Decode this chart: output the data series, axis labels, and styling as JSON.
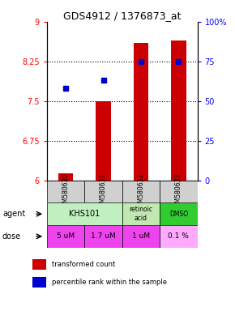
{
  "title": "GDS4912 / 1376873_at",
  "samples": [
    "GSM580630",
    "GSM580631",
    "GSM580632",
    "GSM580633"
  ],
  "bar_values": [
    6.13,
    7.5,
    8.6,
    8.65
  ],
  "percentile_values": [
    58,
    63,
    75,
    75
  ],
  "ylim_left": [
    6,
    9
  ],
  "ylim_right": [
    0,
    100
  ],
  "yticks_left": [
    6,
    6.75,
    7.5,
    8.25,
    9
  ],
  "yticks_right": [
    0,
    25,
    50,
    75,
    100
  ],
  "ytick_labels_left": [
    "6",
    "6.75",
    "7.5",
    "8.25",
    "9"
  ],
  "ytick_labels_right": [
    "0",
    "25",
    "50",
    "75",
    "100%"
  ],
  "hlines": [
    6.75,
    7.5,
    8.25
  ],
  "bar_color": "#cc0000",
  "dot_color": "#0000cc",
  "sample_bg_color": "#d0d0d0",
  "agent_spans": [
    [
      0,
      1,
      "KHS101",
      "#c0f0c0"
    ],
    [
      2,
      2,
      "retinoic\nacid",
      "#c0e8b0"
    ],
    [
      3,
      3,
      "DMSO",
      "#30cc30"
    ]
  ],
  "dose_labels": [
    "5 uM",
    "1.7 uM",
    "1 uM",
    "0.1 %"
  ],
  "dose_colors": [
    "#ee44ee",
    "#ee44ee",
    "#ee44ee",
    "#ffaaff"
  ],
  "legend_bar_color": "#cc0000",
  "legend_dot_color": "#0000cc"
}
